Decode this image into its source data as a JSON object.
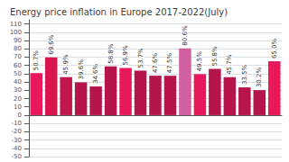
{
  "chart_data": {
    "type": "bar",
    "title": "Energy price inflation in Europe 2017-2022(July)",
    "categories": [
      null,
      null,
      null,
      null,
      null,
      null,
      null,
      null,
      null,
      null,
      null,
      null,
      null,
      null,
      null,
      null,
      null
    ],
    "values": [
      50.7,
      69.6,
      45.9,
      39.6,
      34.6,
      58.8,
      56.9,
      53.7,
      47.6,
      47.5,
      80.6,
      49.5,
      55.8,
      45.7,
      33.5,
      30.2,
      65.0
    ],
    "value_labels": [
      "50.7%",
      "69.6%",
      "45.9%",
      "39.6%",
      "34.6%",
      "58.8%",
      "56.9%",
      "53.7%",
      "47.6%",
      "47.5%",
      "80.6%",
      "49.5%",
      "55.8%",
      "45.7%",
      "33.5%",
      "30.2%",
      "65.0%"
    ],
    "colors": [
      "#e8185a",
      "#d91550",
      "#c0174d",
      "#b5154a",
      "#b5154a",
      "#b5154a",
      "#e8185a",
      "#b5154a",
      "#b5154a",
      "#b5154a",
      "#d060a0",
      "#e8185a",
      "#b5154a",
      "#b5154a",
      "#b5154a",
      "#b5154a",
      "#e8185a"
    ],
    "ylim": [
      -50,
      115
    ],
    "yticks": [
      -50,
      -40,
      -30,
      -20,
      -10,
      0,
      10,
      20,
      30,
      40,
      50,
      60,
      70,
      80,
      90,
      100,
      110
    ],
    "grid": true,
    "tick_labels": "y"
  }
}
